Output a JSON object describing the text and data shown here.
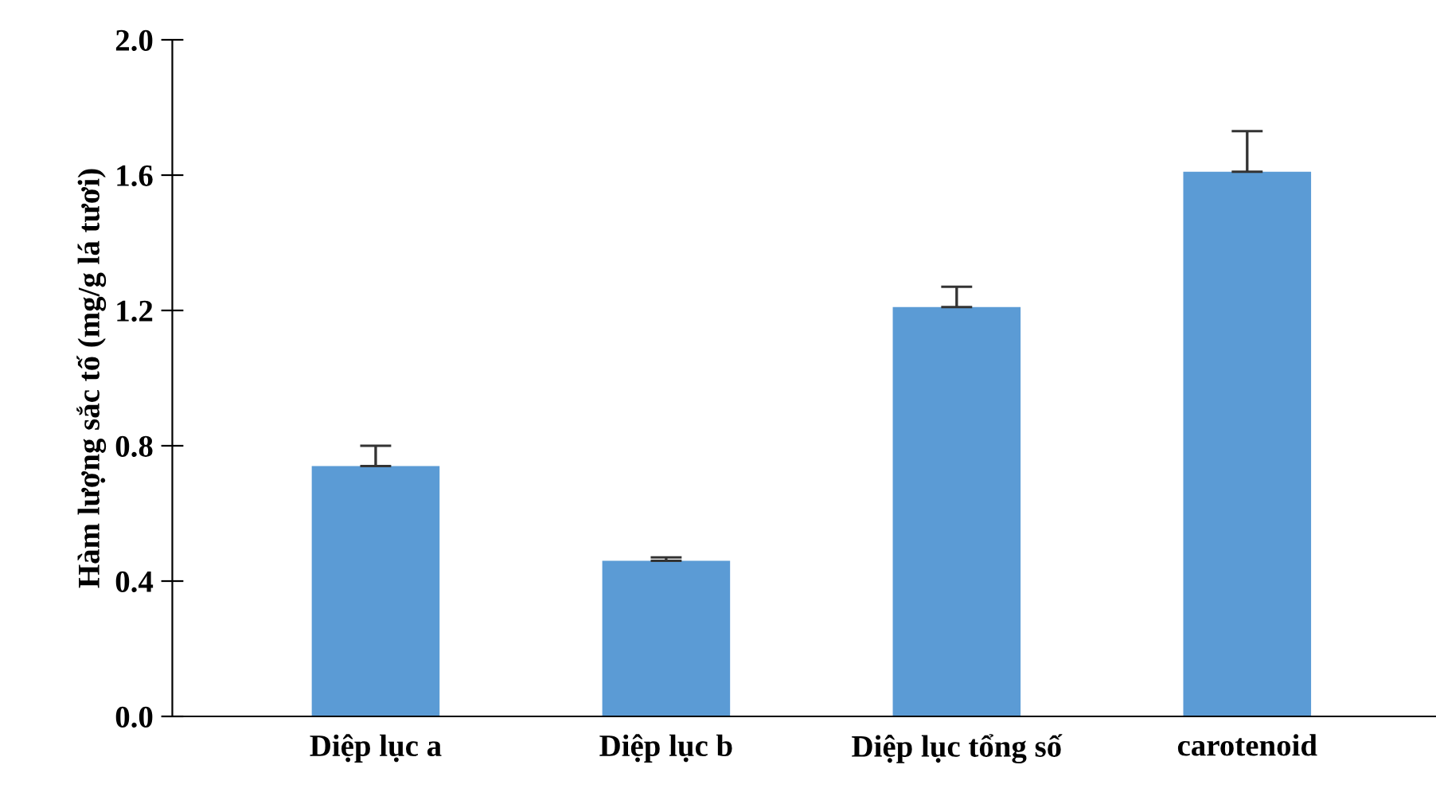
{
  "chart_data": {
    "type": "bar",
    "ylabel": "Hàm lượng sắc tố (mg/g lá tươi)",
    "categories": [
      "Diệp lục a",
      "Diệp lục b",
      "Diệp lục tổng số",
      "carotenoid"
    ],
    "values": [
      0.74,
      0.46,
      1.21,
      1.61
    ],
    "errors": [
      [
        0.74,
        0.8
      ],
      [
        0.46,
        0.47
      ],
      [
        1.21,
        1.27
      ],
      [
        1.61,
        1.73
      ]
    ],
    "color": "#5b9bd5",
    "ylim": [
      0,
      2.0
    ],
    "yticks": [
      {
        "value": 0,
        "label": "0.0"
      },
      0.4,
      0.8,
      1.2,
      1.6,
      {
        "value": 2,
        "label": "2.0"
      }
    ],
    "grid": false,
    "legend": false
  }
}
